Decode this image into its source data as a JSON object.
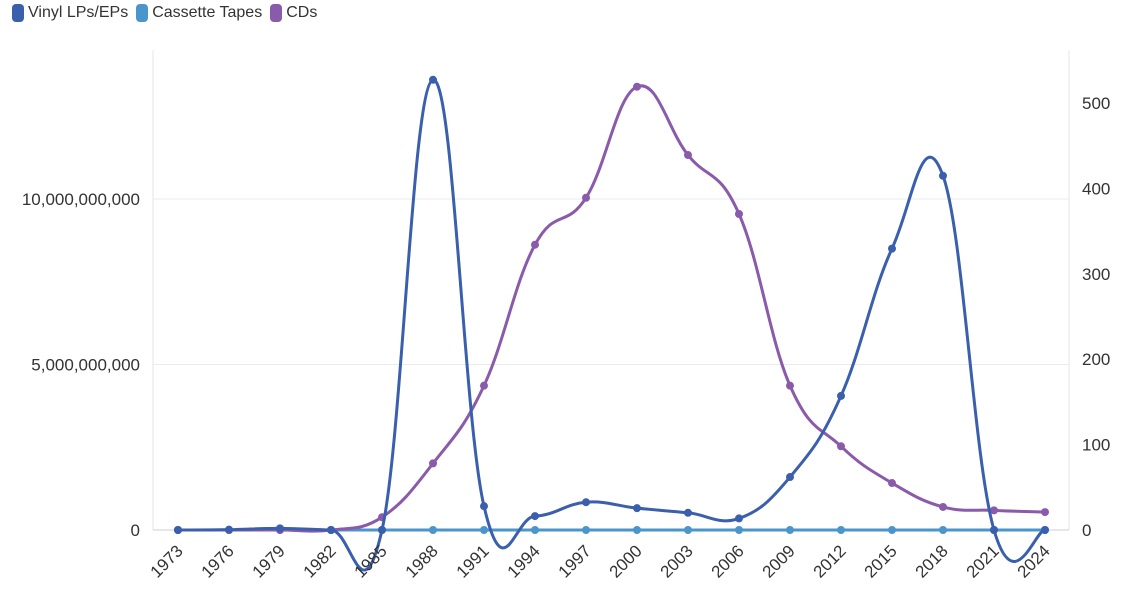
{
  "chart_data": {
    "type": "line",
    "categories": [
      "1973",
      "1976",
      "1979",
      "1982",
      "1985",
      "1988",
      "1991",
      "1994",
      "1997",
      "2000",
      "2003",
      "2006",
      "2009",
      "2012",
      "2015",
      "2018",
      "2021",
      "2024"
    ],
    "series": [
      {
        "name": "Vinyl LPs/EPs",
        "color": "#3a5fad",
        "axis": "left",
        "values": [
          0,
          10000000,
          50000000,
          0,
          0,
          13600000000,
          720000000,
          420000000,
          840000000,
          660000000,
          520000000,
          350000000,
          1600000000,
          4050000000,
          8500000000,
          10700000000,
          0,
          0
        ]
      },
      {
        "name": "Cassette Tapes",
        "color": "#4a96cc",
        "axis": "left",
        "values": [
          0,
          0,
          0,
          0,
          0,
          0,
          0,
          0,
          0,
          0,
          0,
          0,
          0,
          0,
          0,
          0,
          0,
          0
        ]
      },
      {
        "name": "CDs",
        "color": "#8a5aab",
        "axis": "right",
        "values": [
          0,
          0,
          0,
          0,
          15,
          78,
          169,
          334,
          389,
          519,
          439,
          370,
          169,
          98,
          55,
          27,
          23,
          21
        ]
      }
    ],
    "y_left": {
      "min": 0,
      "max": 14500000000,
      "ticks": [
        0,
        5000000000,
        10000000000
      ],
      "tick_labels": [
        "0",
        "5,000,000,000",
        "10,000,000,000"
      ]
    },
    "y_right": {
      "min": 0,
      "max": 562,
      "ticks": [
        0,
        100,
        200,
        300,
        400,
        500
      ],
      "tick_labels": [
        "0",
        "100",
        "200",
        "300",
        "400",
        "500"
      ]
    },
    "grid": true,
    "legend_position": "top-left"
  }
}
